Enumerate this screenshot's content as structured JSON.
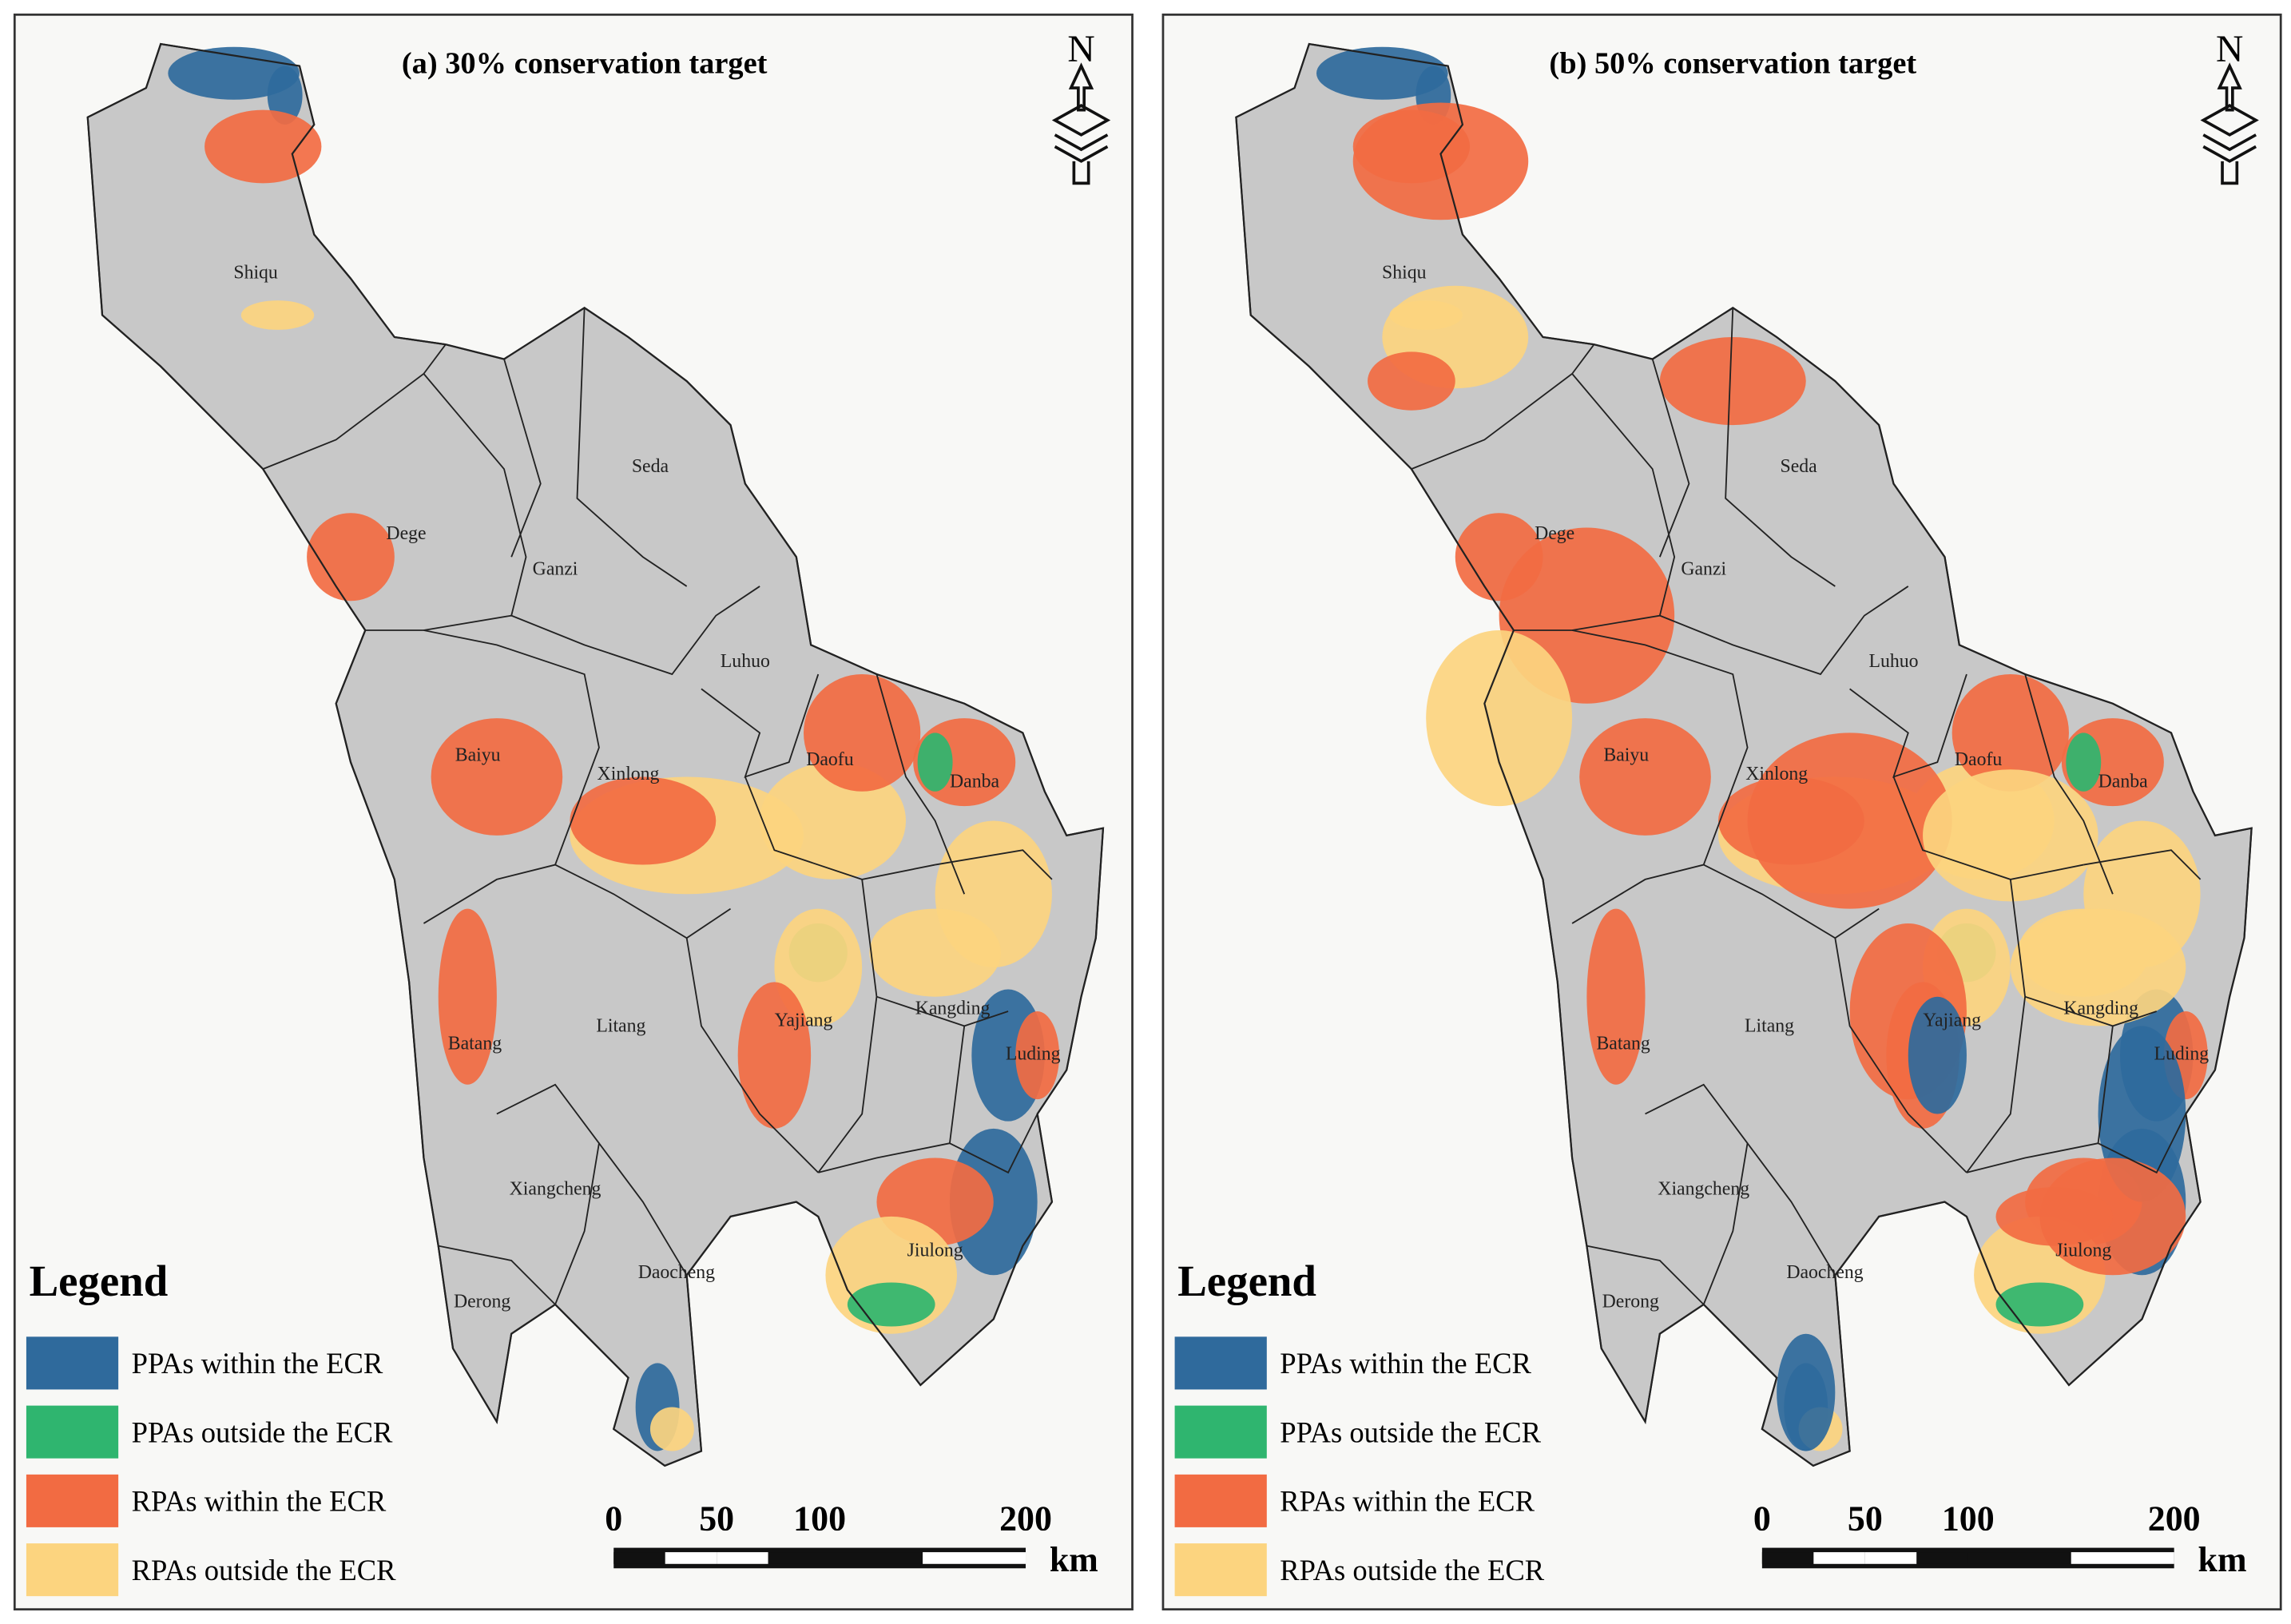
{
  "panels": [
    {
      "title": "(a) 30% conservation target",
      "north": "N",
      "counties": [
        "Shiqu",
        "Seda",
        "Dege",
        "Ganzi",
        "Luhuo",
        "Baiyu",
        "Xinlong",
        "Daofu",
        "Danba",
        "Kangding",
        "Yajiang",
        "Litang",
        "Batang",
        "Luding",
        "Xiangcheng",
        "Jiulong",
        "Daocheng",
        "Derong"
      ],
      "legend": {
        "title": "Legend",
        "items": [
          {
            "label": "PPAs within the ECR",
            "color": "#2f6a9c"
          },
          {
            "label": "PPAs outside the ECR",
            "color": "#2fb56f"
          },
          {
            "label": "RPAs within the ECR",
            "color": "#f26b42"
          },
          {
            "label": "RPAs outside the ECR",
            "color": "#fcd47f"
          }
        ]
      },
      "scale": {
        "ticks": [
          0,
          50,
          100,
          200
        ],
        "unit": "km"
      }
    },
    {
      "title": "(b) 50% conservation target",
      "north": "N",
      "counties": [
        "Shiqu",
        "Seda",
        "Dege",
        "Ganzi",
        "Luhuo",
        "Baiyu",
        "Xinlong",
        "Daofu",
        "Danba",
        "Kangding",
        "Yajiang",
        "Litang",
        "Batang",
        "Luding",
        "Xiangcheng",
        "Jiulong",
        "Daocheng",
        "Derong"
      ],
      "legend": {
        "title": "Legend",
        "items": [
          {
            "label": "PPAs within the ECR",
            "color": "#2f6a9c"
          },
          {
            "label": "PPAs outside the ECR",
            "color": "#2fb56f"
          },
          {
            "label": "RPAs within the ECR",
            "color": "#f26b42"
          },
          {
            "label": "RPAs outside the ECR",
            "color": "#fcd47f"
          }
        ]
      },
      "scale": {
        "ticks": [
          0,
          50,
          100,
          200
        ],
        "unit": "km"
      }
    }
  ]
}
